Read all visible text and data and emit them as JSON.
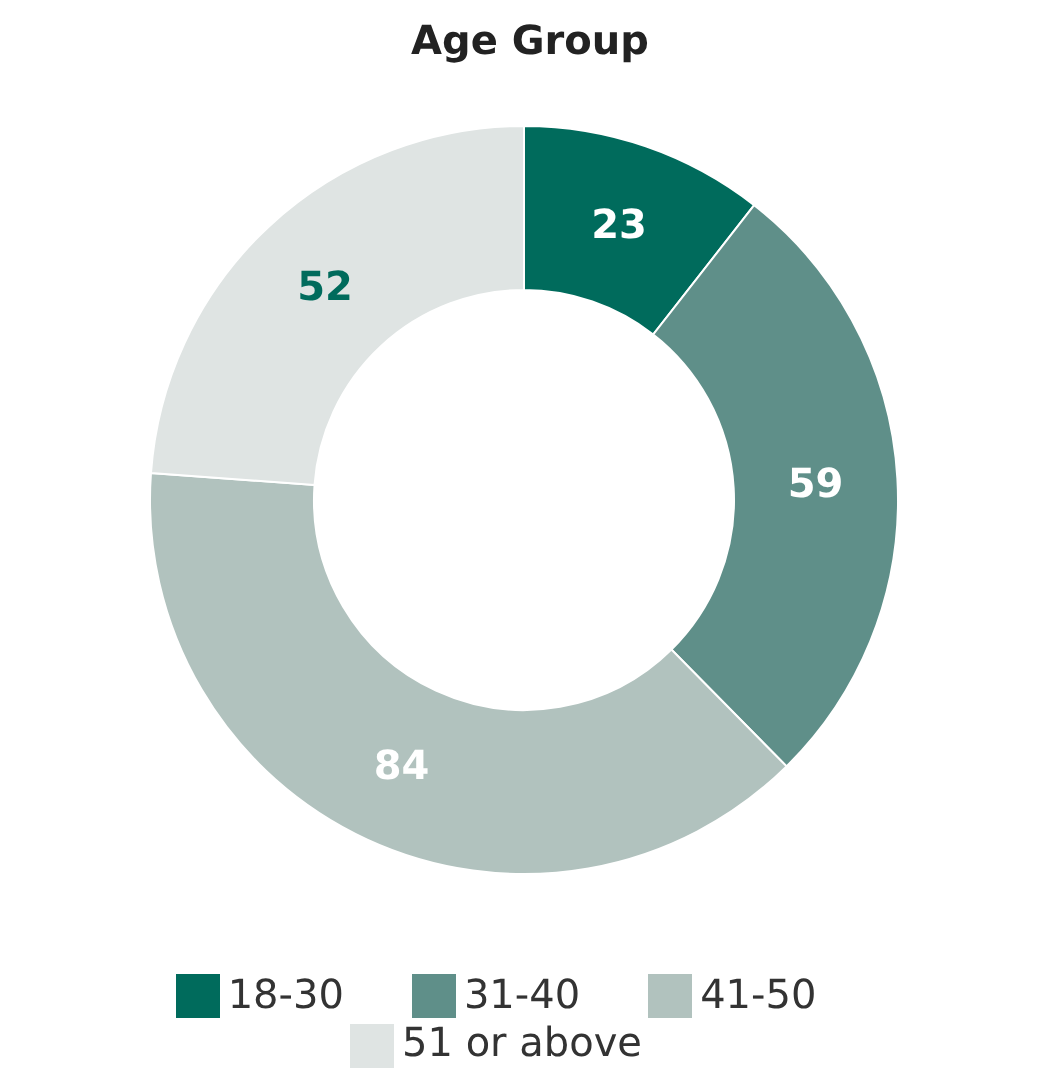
{
  "chart_data": {
    "type": "donut",
    "title": "Age Group",
    "categories": [
      "18-30",
      "31-40",
      "41-50",
      "51 or above"
    ],
    "values": [
      23,
      59,
      84,
      52
    ],
    "colors": [
      "#006b5c",
      "#5f8f89",
      "#b1c2be",
      "#dfe4e3"
    ],
    "data_labels": true,
    "legend": "bottom"
  }
}
